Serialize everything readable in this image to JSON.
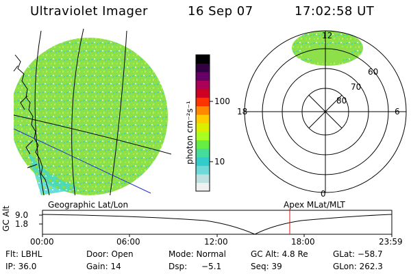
{
  "header": {
    "title": "Ultraviolet Imager",
    "date": "16 Sep 07",
    "time": "17:02:58 UT"
  },
  "colorbar": {
    "label": "photon cm⁻²s⁻¹",
    "ticks": [
      {
        "text": "100",
        "value": 100
      },
      {
        "text": "10",
        "value": 10
      }
    ],
    "colors": [
      "#f0f0f0",
      "#bfe0e0",
      "#6fd8d8",
      "#33cccc",
      "#44dd99",
      "#66ee44",
      "#aaff22",
      "#ddee00",
      "#ffcc00",
      "#ff8800",
      "#ff3300",
      "#cc0022",
      "#aa0055",
      "#660066",
      "#330044",
      "#000000"
    ]
  },
  "polar": {
    "labels": [
      "12",
      "18",
      "6",
      "0",
      "60",
      "70",
      "80"
    ]
  },
  "map_labels": {
    "left": "Geographic Lat/Lon",
    "right": "Apex MLat/MLT"
  },
  "altitude": {
    "axis_label": "GC Alt",
    "y_ticks": [
      "9.0",
      "1.8"
    ],
    "x_ticks": [
      "00:00",
      "06:00",
      "12:00",
      "18:00",
      "23:59"
    ]
  },
  "info": {
    "row1": [
      "Flt: LBHL",
      "Door: Open",
      "Mode: Normal",
      "GC Alt: 4.8 Re",
      "GLat: −58.7"
    ],
    "row2": [
      "IP: 36.0",
      "Gain: 14",
      "Dsp:",
      "−5.1",
      "Seq: 39",
      "GLon: 262.3"
    ]
  },
  "colors": {
    "aurora_green": "#7fe04a",
    "aurora_cyan": "#3fd7d0",
    "marker_red": "#e01010",
    "line_blue": "#2030d0"
  }
}
